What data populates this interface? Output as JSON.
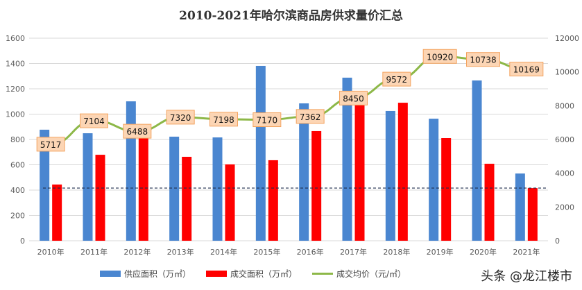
{
  "chart_data": {
    "type": "bar+line",
    "title": "2010-2021年哈尔滨商品房供求量价汇总",
    "categories": [
      "2010年",
      "2011年",
      "2012年",
      "2013年",
      "2014年",
      "2015年",
      "2016年",
      "2017年",
      "2018年",
      "2019年",
      "2020年",
      "2021年"
    ],
    "series": [
      {
        "name": "供应面积（万㎡）",
        "type": "bar",
        "axis": "left",
        "color": "#4a86d0",
        "values": [
          877,
          849,
          1101,
          822,
          816,
          1381,
          1085,
          1288,
          1025,
          964,
          1266,
          531
        ]
      },
      {
        "name": "成交面积（万㎡）",
        "type": "bar",
        "axis": "left",
        "color": "#ff0000",
        "values": [
          444,
          679,
          882,
          663,
          603,
          636,
          866,
          1079,
          1090,
          811,
          608,
          416
        ]
      },
      {
        "name": "成交均价（元/㎡）",
        "type": "line",
        "axis": "right",
        "color": "#8db848",
        "values": [
          5717,
          7104,
          6488,
          7320,
          7198,
          7170,
          7362,
          8450,
          9572,
          10920,
          10738,
          10169
        ]
      }
    ],
    "reference_line": {
      "axis": "left",
      "value": 416,
      "style": "dashed"
    },
    "y_left": {
      "ylim": [
        0,
        1600
      ],
      "ticks": [
        "0",
        "200",
        "400",
        "600",
        "800",
        "1000",
        "1200",
        "1400",
        "1600"
      ]
    },
    "y_right": {
      "ylim": [
        0,
        12000
      ],
      "ticks": [
        "0",
        "2000",
        "4000",
        "6000",
        "8000",
        "10000",
        "12000"
      ]
    },
    "grid": true,
    "legend_position": "bottom"
  },
  "watermark": "头条 @龙江楼市"
}
